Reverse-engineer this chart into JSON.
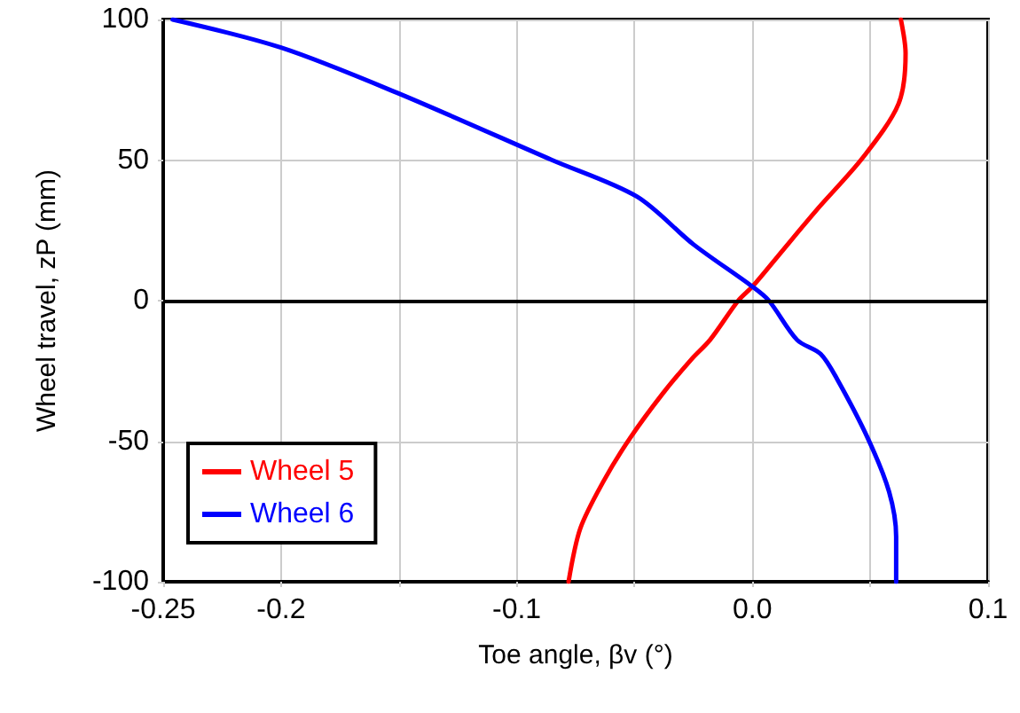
{
  "chart_data": {
    "type": "line",
    "xlabel": "Toe angle, βv (°)",
    "ylabel": "Wheel travel, zP (mm)",
    "xlim": [
      -0.25,
      0.1
    ],
    "ylim": [
      -100,
      100
    ],
    "xticks": [
      -0.25,
      -0.2,
      {
        "value": -0.15,
        "label": null
      },
      -0.1,
      {
        "value": -0.05,
        "label": null
      },
      {
        "value": 0,
        "label": "0.0"
      },
      {
        "value": 0.05,
        "label": null
      },
      0.1
    ],
    "yticks": [
      -100,
      -50,
      0,
      50,
      100
    ],
    "grid": true,
    "legend": "bottom left",
    "marker": "none",
    "line_style": "solid",
    "ref_lines": [
      {
        "axis": "y",
        "value": 0,
        "color": "#000000"
      }
    ],
    "series": [
      {
        "name": "Wheel 5",
        "color": "#ff0000",
        "x": [
          0.063,
          0.065,
          0.062,
          0.047,
          0.027,
          0.011,
          0.0,
          -0.006,
          -0.018,
          -0.026,
          -0.038,
          -0.052,
          -0.063,
          -0.073,
          -0.078
        ],
        "values": [
          100,
          88,
          70,
          51,
          32,
          16,
          5,
          0,
          -14,
          -21,
          -33,
          -49,
          -64,
          -81,
          -100
        ]
      },
      {
        "name": "Wheel 6",
        "color": "#0000ff",
        "x": [
          -0.246,
          -0.2,
          -0.151,
          -0.085,
          -0.049,
          -0.025,
          0.0,
          0.007,
          0.019,
          0.029,
          0.036,
          0.049,
          0.058,
          0.061,
          0.061
        ],
        "values": [
          100,
          90,
          74,
          50,
          37,
          20,
          5,
          0,
          -14,
          -19,
          -28,
          -49,
          -68,
          -84,
          -100
        ]
      }
    ]
  }
}
